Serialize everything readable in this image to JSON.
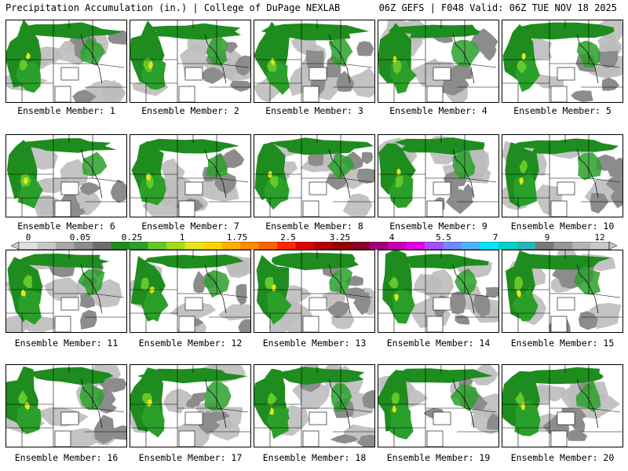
{
  "header": {
    "left": "Precipitation Accumulation (in.) | College of DuPage NEXLAB",
    "right": "06Z GEFS | F048 Valid: 06Z TUE NOV 18 2025"
  },
  "members": [
    "Ensemble Member: 1",
    "Ensemble Member: 2",
    "Ensemble Member: 3",
    "Ensemble Member: 4",
    "Ensemble Member: 5",
    "Ensemble Member: 6",
    "Ensemble Member: 7",
    "Ensemble Member: 8",
    "Ensemble Member: 9",
    "Ensemble Member: 10",
    "Ensemble Member: 11",
    "Ensemble Member: 12",
    "Ensemble Member: 13",
    "Ensemble Member: 14",
    "Ensemble Member: 15",
    "Ensemble Member: 16",
    "Ensemble Member: 17",
    "Ensemble Member: 18",
    "Ensemble Member: 19",
    "Ensemble Member: 20"
  ],
  "colorbar": {
    "tick_labels": [
      "0",
      "0.05",
      "0.25",
      "1",
      "1.75",
      "2.5",
      "3.25",
      "4",
      "5.5",
      "7",
      "9",
      "12"
    ],
    "colors": [
      "#e0e0e0",
      "#c8c8c8",
      "#a8a8a8",
      "#8c8c8c",
      "#6e6e6e",
      "#1e8c1e",
      "#2aa02a",
      "#64c828",
      "#a0dc1e",
      "#e6e61e",
      "#ffd700",
      "#ffb000",
      "#ff8c00",
      "#ff6400",
      "#ff2800",
      "#e00000",
      "#b40000",
      "#960000",
      "#8c0028",
      "#a00078",
      "#c800b4",
      "#e600e6",
      "#a050ff",
      "#6e8cff",
      "#50b4ff",
      "#00e6ff",
      "#00d2c8",
      "#28b4b4",
      "#787878",
      "#969696",
      "#b4b4b4",
      "#c8c8c8"
    ]
  },
  "colors": {
    "border": "#000000",
    "background": "#ffffff"
  }
}
